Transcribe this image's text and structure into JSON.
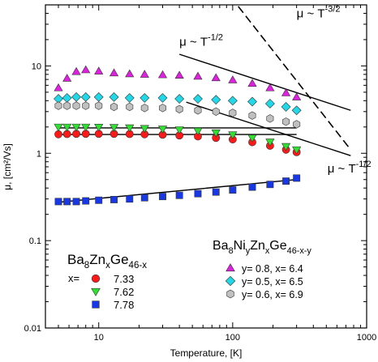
{
  "chart_data": {
    "type": "scatter",
    "x_scale": "log",
    "y_scale": "log",
    "xlim": [
      4,
      1000
    ],
    "ylim": [
      0.01,
      50
    ],
    "xlabel": "Temperature, [K]",
    "ylabel": "μ, [cm²/Vs]",
    "x_ticks": [
      {
        "value": 10,
        "label": "10"
      },
      {
        "value": 100,
        "label": "100"
      },
      {
        "value": 1000,
        "label": "1000"
      }
    ],
    "y_ticks": [
      {
        "value": 0.01,
        "label": "0.01"
      },
      {
        "value": 0.1,
        "label": "0.1"
      },
      {
        "value": 1,
        "label": "1"
      },
      {
        "value": 10,
        "label": "10"
      }
    ],
    "grid": false,
    "series": [
      {
        "name": "y= 0.8, x= 6.4",
        "group": "BaNiZnGe",
        "marker": "triangle-up",
        "color": "#e020e0",
        "x": [
          5,
          5.8,
          6.8,
          8,
          10,
          13,
          17,
          22,
          30,
          40,
          55,
          75,
          100,
          140,
          190,
          250,
          300
        ],
        "y": [
          5.6,
          7.2,
          8.6,
          9.0,
          8.7,
          8.3,
          8.1,
          8.0,
          7.9,
          7.8,
          7.6,
          7.3,
          6.9,
          6.3,
          5.6,
          4.9,
          4.4
        ]
      },
      {
        "name": "y= 0.5, x= 6.5",
        "group": "BaNiZnGe",
        "marker": "diamond",
        "color": "#20d8e8",
        "x": [
          5,
          5.8,
          6.8,
          8,
          10,
          13,
          17,
          22,
          30,
          40,
          55,
          75,
          100,
          140,
          190,
          250,
          300
        ],
        "y": [
          4.2,
          4.3,
          4.4,
          4.4,
          4.4,
          4.4,
          4.3,
          4.3,
          4.3,
          4.2,
          4.2,
          4.1,
          4.0,
          3.9,
          3.7,
          3.4,
          3.1
        ]
      },
      {
        "name": "y= 0.6, x= 6.9",
        "group": "BaNiZnGe",
        "marker": "hexagon",
        "color": "#c0c0c0",
        "x": [
          5,
          5.8,
          6.8,
          8,
          10,
          13,
          17,
          22,
          30,
          40,
          55,
          75,
          100,
          140,
          190,
          250,
          300
        ],
        "y": [
          3.5,
          3.5,
          3.5,
          3.5,
          3.5,
          3.4,
          3.4,
          3.3,
          3.3,
          3.2,
          3.1,
          3.0,
          2.9,
          2.7,
          2.5,
          2.3,
          2.15
        ]
      },
      {
        "name": "7.33",
        "group": "BaZnGe",
        "marker": "circle",
        "color": "#ff1818",
        "x": [
          5,
          5.8,
          6.8,
          8,
          10,
          13,
          17,
          22,
          30,
          40,
          55,
          75,
          100,
          140,
          190,
          250,
          300
        ],
        "y": [
          1.65,
          1.66,
          1.67,
          1.67,
          1.67,
          1.67,
          1.66,
          1.65,
          1.63,
          1.6,
          1.56,
          1.5,
          1.44,
          1.34,
          1.22,
          1.1,
          1.03
        ]
      },
      {
        "name": "7.62",
        "group": "BaZnGe",
        "marker": "triangle-down",
        "color": "#30e030",
        "x": [
          5,
          5.8,
          6.8,
          8,
          10,
          13,
          17,
          22,
          30,
          40,
          55,
          75,
          100,
          140,
          190,
          250,
          300
        ],
        "y": [
          2.0,
          2.0,
          2.0,
          2.0,
          1.99,
          1.98,
          1.96,
          1.93,
          1.9,
          1.86,
          1.8,
          1.72,
          1.63,
          1.5,
          1.35,
          1.2,
          1.1
        ]
      },
      {
        "name": "7.78",
        "group": "BaZnGe",
        "marker": "square",
        "color": "#1838e8",
        "x": [
          5,
          5.8,
          6.8,
          8,
          10,
          13,
          17,
          22,
          30,
          40,
          55,
          75,
          100,
          140,
          190,
          250,
          300
        ],
        "y": [
          0.28,
          0.28,
          0.28,
          0.285,
          0.29,
          0.295,
          0.3,
          0.31,
          0.32,
          0.33,
          0.345,
          0.36,
          0.38,
          0.41,
          0.44,
          0.48,
          0.52
        ]
      }
    ],
    "guide_lines": [
      {
        "style": "solid",
        "x": [
          5,
          300
        ],
        "y": [
          1.64,
          1.64
        ]
      },
      {
        "style": "solid",
        "x": [
          5,
          300
        ],
        "y": [
          1.95,
          1.95
        ]
      },
      {
        "style": "solid",
        "x": [
          5,
          300
        ],
        "y": [
          0.275,
          0.5
        ]
      },
      {
        "style": "dashed",
        "x": [
          110,
          760
        ],
        "y": [
          48,
          1.1
        ]
      },
      {
        "style": "solid",
        "x": [
          40,
          760
        ],
        "y": [
          13.6,
          3.1
        ]
      },
      {
        "style": "solid",
        "x": [
          45,
          760
        ],
        "y": [
          3.85,
          0.94
        ]
      }
    ],
    "annotations": [
      {
        "id": "mu-t-32",
        "base": "μ ~ T",
        "sup": "-3/2",
        "x": 300,
        "y": 36
      },
      {
        "id": "mu-t-12-upper",
        "base": "μ ~ T",
        "sup": "-1/2",
        "x": 40,
        "y": 17
      },
      {
        "id": "mu-t-12-lower",
        "base": "μ ~ T",
        "sup": "-1/2",
        "x": 510,
        "y": 0.6
      }
    ],
    "legends": [
      {
        "id": "znge",
        "formula": [
          {
            "t": "Ba"
          },
          {
            "t": "8",
            "sub": true
          },
          {
            "t": "Zn"
          },
          {
            "t": "x",
            "sub": true
          },
          {
            "t": "Ge"
          },
          {
            "t": "46-x",
            "sub": true
          }
        ],
        "prefix": "x=",
        "series": [
          "7.33",
          "7.62",
          "7.78"
        ]
      },
      {
        "id": "nizn",
        "formula": [
          {
            "t": "Ba"
          },
          {
            "t": "8",
            "sub": true
          },
          {
            "t": "Ni"
          },
          {
            "t": "y",
            "sub": true
          },
          {
            "t": "Zn"
          },
          {
            "t": "x",
            "sub": true
          },
          {
            "t": "Ge"
          },
          {
            "t": "46-x-y",
            "sub": true
          }
        ],
        "series": [
          "y= 0.8, x= 6.4",
          "y= 0.5, x= 6.5",
          "y= 0.6, x= 6.9"
        ]
      }
    ]
  }
}
